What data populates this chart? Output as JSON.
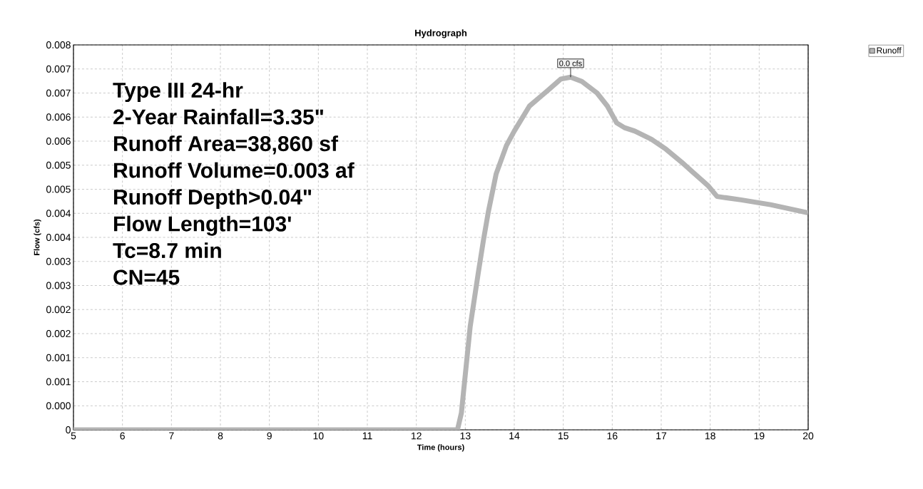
{
  "chart_data": {
    "type": "line",
    "title": "Hydrograph",
    "xlabel": "Time  (hours)",
    "ylabel": "Flow  (cfs)",
    "x": [
      5,
      12.84,
      12.92,
      13.1,
      13.26,
      13.37,
      13.47,
      13.63,
      13.84,
      14.0,
      14.31,
      14.68,
      14.95,
      15.15,
      15.38,
      15.69,
      15.9,
      16.09,
      16.25,
      16.46,
      16.8,
      17.1,
      17.42,
      17.63,
      17.95,
      18.14,
      18.63,
      19.23,
      20.0
    ],
    "series": [
      {
        "name": "Runoff",
        "color": "#b4b4b4",
        "values": [
          0,
          0,
          0.00035,
          0.00215,
          0.00323,
          0.00394,
          0.00453,
          0.00532,
          0.00591,
          0.00621,
          0.00673,
          0.00705,
          0.00729,
          0.00733,
          0.00724,
          0.007,
          0.00673,
          0.00638,
          0.00628,
          0.00621,
          0.00604,
          0.00583,
          0.00556,
          0.00537,
          0.00508,
          0.00485,
          0.00478,
          0.00468,
          0.00451
        ]
      }
    ],
    "xlim": [
      5,
      20
    ],
    "xticks": [
      5,
      6,
      7,
      8,
      9,
      10,
      11,
      12,
      13,
      14,
      15,
      16,
      17,
      18,
      19,
      20
    ],
    "ylim": [
      0,
      0.008
    ],
    "yticks": [
      {
        "value": 0,
        "label": "0"
      },
      {
        "value": 0.0005,
        "label": "0.000"
      },
      {
        "value": 0.001,
        "label": "0.001"
      },
      {
        "value": 0.0015,
        "label": "0.001"
      },
      {
        "value": 0.002,
        "label": "0.002"
      },
      {
        "value": 0.0025,
        "label": "0.002"
      },
      {
        "value": 0.003,
        "label": "0.003"
      },
      {
        "value": 0.0035,
        "label": "0.003"
      },
      {
        "value": 0.004,
        "label": "0.004"
      },
      {
        "value": 0.0045,
        "label": "0.004"
      },
      {
        "value": 0.005,
        "label": "0.005"
      },
      {
        "value": 0.0055,
        "label": "0.005"
      },
      {
        "value": 0.006,
        "label": "0.006"
      },
      {
        "value": 0.0065,
        "label": "0.006"
      },
      {
        "value": 0.007,
        "label": "0.007"
      },
      {
        "value": 0.0075,
        "label": "0.007"
      },
      {
        "value": 0.008,
        "label": "0.008"
      }
    ],
    "grid": true,
    "legend": "top right",
    "marker": "none",
    "line_style": "solid",
    "annotations": [
      {
        "text": "0.0 cfs",
        "x": 15.15,
        "y": 0.00733
      },
      "Type III 24-hr",
      "2-Year Rainfall=3.35\"",
      "Runoff Area=38,860 sf",
      "Runoff Volume=0.003 af",
      "Runoff Depth>0.04\"",
      "Flow Length=103'",
      "Tc=8.7 min",
      "CN=45"
    ]
  }
}
